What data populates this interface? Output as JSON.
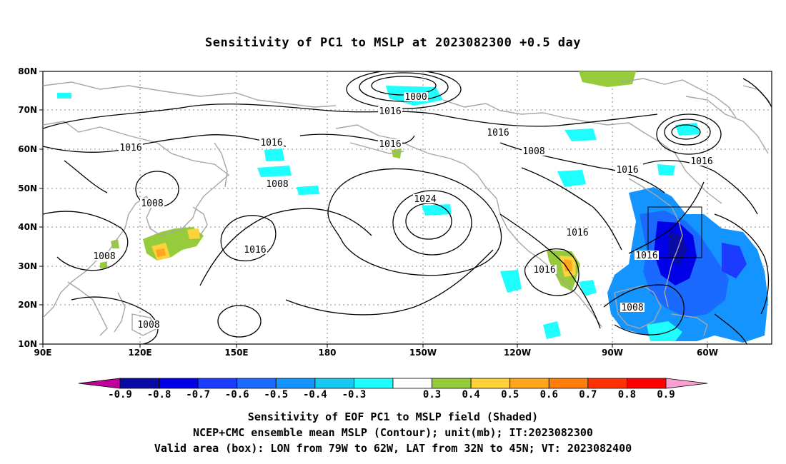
{
  "title": "Sensitivity of PC1 to MSLP at 2023082300 +0.5 day",
  "map": {
    "lon_labels": [
      "90E",
      "120E",
      "150E",
      "180",
      "150W",
      "120W",
      "90W",
      "60W"
    ],
    "lat_labels": [
      "80N",
      "70N",
      "60N",
      "50N",
      "40N",
      "30N",
      "20N",
      "10N"
    ],
    "isobar_labels": [
      "1000",
      "1016",
      "1016",
      "1016",
      "1016",
      "1016",
      "1008",
      "1016",
      "1016",
      "1008",
      "1024",
      "1008",
      "1016",
      "1016",
      "1016",
      "1008",
      "1016",
      "1008",
      "1008"
    ],
    "box": {
      "lon_min": -79,
      "lon_max": -62,
      "lat_min": 32,
      "lat_max": 45
    },
    "colors": {
      "contour": "#000000",
      "coast": "#a6a6a6",
      "box": "#000000"
    }
  },
  "colorbar": {
    "labels": [
      "-0.9",
      "-0.8",
      "-0.7",
      "-0.6",
      "-0.5",
      "-0.4",
      "-0.3",
      "0.3",
      "0.4",
      "0.5",
      "0.6",
      "0.7",
      "0.8",
      "0.9"
    ],
    "colors": [
      "#c1009c",
      "#0a0aa5",
      "#0000e6",
      "#1b3cff",
      "#1a6aff",
      "#1494ff",
      "#17c8f0",
      "#1efefe",
      "#ffffff",
      "#96cb3c",
      "#ffd23c",
      "#ffa51e",
      "#ff7d0a",
      "#ff3200",
      "#ff0000",
      "#f9a0d0"
    ]
  },
  "captions": {
    "line1": "Sensitivity of EOF PC1 to MSLP field (Shaded)",
    "line2": "NCEP+CMC ensemble mean MSLP (Contour); unit(mb); IT:2023082300",
    "line3": "Valid area (box): LON from 79W to 62W, LAT from 32N to 45N; VT: 2023082400"
  }
}
